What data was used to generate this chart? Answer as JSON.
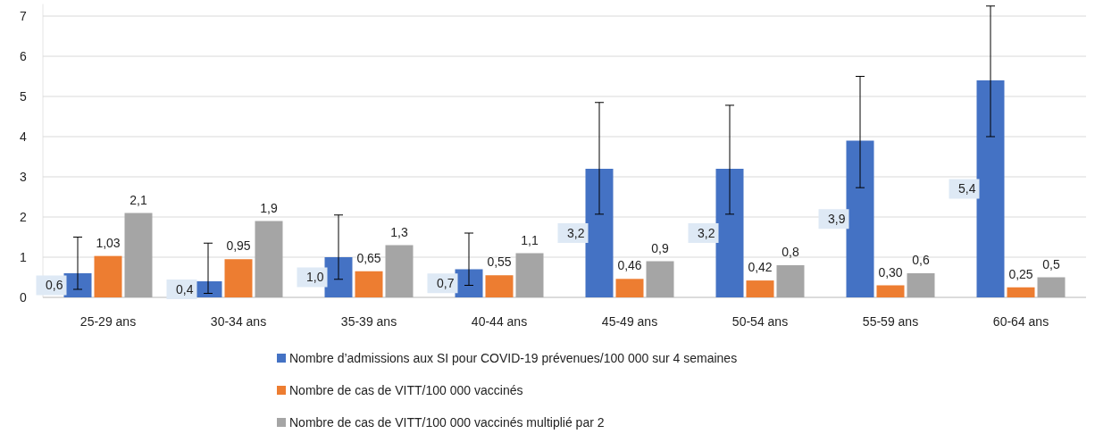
{
  "chart_data": {
    "type": "bar",
    "categories": [
      "25-29 ans",
      "30-34 ans",
      "35-39 ans",
      "40-44 ans",
      "45-49 ans",
      "50-54 ans",
      "55-59 ans",
      "60-64 ans"
    ],
    "series": [
      {
        "name": "Nombre d’admissions aux SI pour COVID-19 prévenues/100 000 sur 4 semaines",
        "color": "#4472c4",
        "values": [
          0.6,
          0.4,
          1.0,
          0.7,
          3.2,
          3.2,
          3.9,
          5.4
        ],
        "value_labels": [
          "0,6",
          "0,4",
          "1,0",
          "0,7",
          "3,2",
          "3,2",
          "3,9",
          "5,4"
        ],
        "errors": [
          [
            0.2,
            1.5
          ],
          [
            0.1,
            1.35
          ],
          [
            0.45,
            2.05
          ],
          [
            0.3,
            1.6
          ],
          [
            2.07,
            4.85
          ],
          [
            2.07,
            4.78
          ],
          [
            2.73,
            5.5
          ],
          [
            4.0,
            7.25
          ]
        ]
      },
      {
        "name": "Nombre de cas de VITT/100 000 vaccinés",
        "color": "#ed7d31",
        "values": [
          1.03,
          0.95,
          0.65,
          0.55,
          0.46,
          0.42,
          0.3,
          0.25
        ],
        "value_labels": [
          "1,03",
          "0,95",
          "0,65",
          "0,55",
          "0,46",
          "0,42",
          "0,30",
          "0,25"
        ]
      },
      {
        "name": "Nombre de cas de VITT/100 000 vaccinés multiplié par 2",
        "color": "#a5a5a5",
        "values": [
          2.1,
          1.9,
          1.3,
          1.1,
          0.9,
          0.8,
          0.6,
          0.5
        ],
        "value_labels": [
          "2,1",
          "1,9",
          "1,3",
          "1,1",
          "0,9",
          "0,8",
          "0,6",
          "0,5"
        ]
      }
    ],
    "ylim": [
      0,
      7.3
    ],
    "yticks": [
      0,
      1,
      2,
      3,
      4,
      5,
      6,
      7
    ],
    "grid": "y",
    "legend": "bottom"
  }
}
